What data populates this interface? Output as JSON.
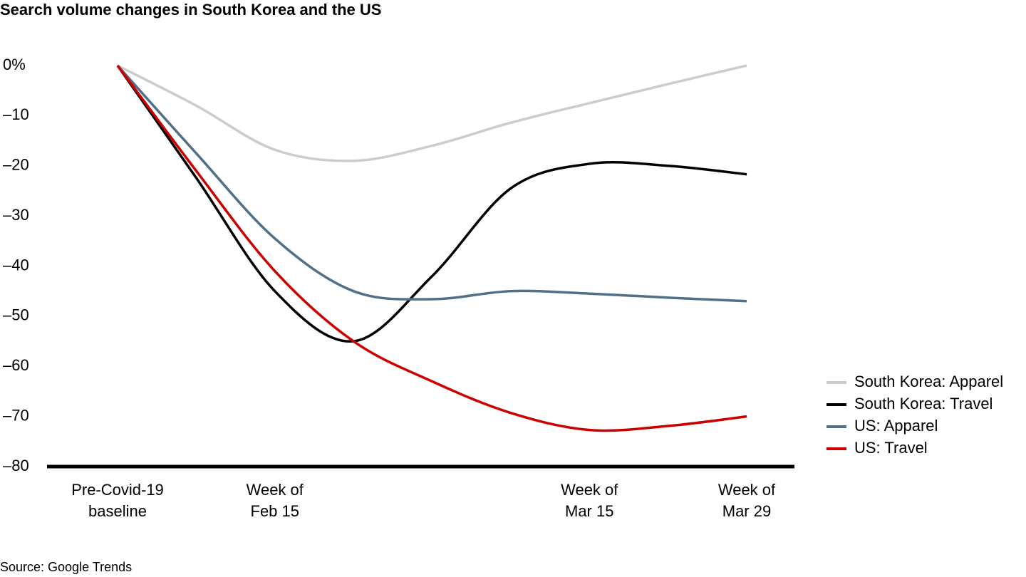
{
  "chart_data": {
    "type": "line",
    "title": "Search volume changes in South Korea and the US",
    "source": "Source: Google Trends",
    "categories": [
      "Pre-Covid-19\nbaseline",
      null,
      "Week of\nFeb 15",
      null,
      null,
      null,
      "Week of\nMar 15",
      null,
      "Week of\nMar 29"
    ],
    "series": [
      {
        "name": "South Korea: Apparel",
        "color": "#cccccc",
        "values": [
          0,
          -8,
          -16.8,
          -19,
          -16,
          -11.4,
          -7.5,
          -3.7,
          0
        ]
      },
      {
        "name": "South Korea: Travel",
        "color": "#000000",
        "values": [
          0,
          -22.4,
          -45,
          -55,
          -42,
          -24.5,
          -19.6,
          -20,
          -21.7
        ]
      },
      {
        "name": "US: Apparel",
        "color": "#507088",
        "values": [
          0,
          -17.5,
          -34.5,
          -45,
          -46.6,
          -45,
          -45.5,
          -46.3,
          -47
        ]
      },
      {
        "name": "US: Travel",
        "color": "#cc0000",
        "values": [
          0,
          -21,
          -41,
          -55,
          -63,
          -69.3,
          -72.7,
          -71.9,
          -70
        ]
      }
    ],
    "ylim": [
      -80,
      0
    ],
    "yticks": [
      {
        "value": 0,
        "label": "0%"
      },
      {
        "value": -10,
        "label": "–10"
      },
      {
        "value": -20,
        "label": "–20"
      },
      {
        "value": -30,
        "label": "–30"
      },
      {
        "value": -40,
        "label": "–40"
      },
      {
        "value": -50,
        "label": "–50"
      },
      {
        "value": -60,
        "label": "–60"
      },
      {
        "value": -70,
        "label": "–70"
      },
      {
        "value": -80,
        "label": "–80"
      }
    ],
    "grid": false,
    "legend": "right"
  }
}
